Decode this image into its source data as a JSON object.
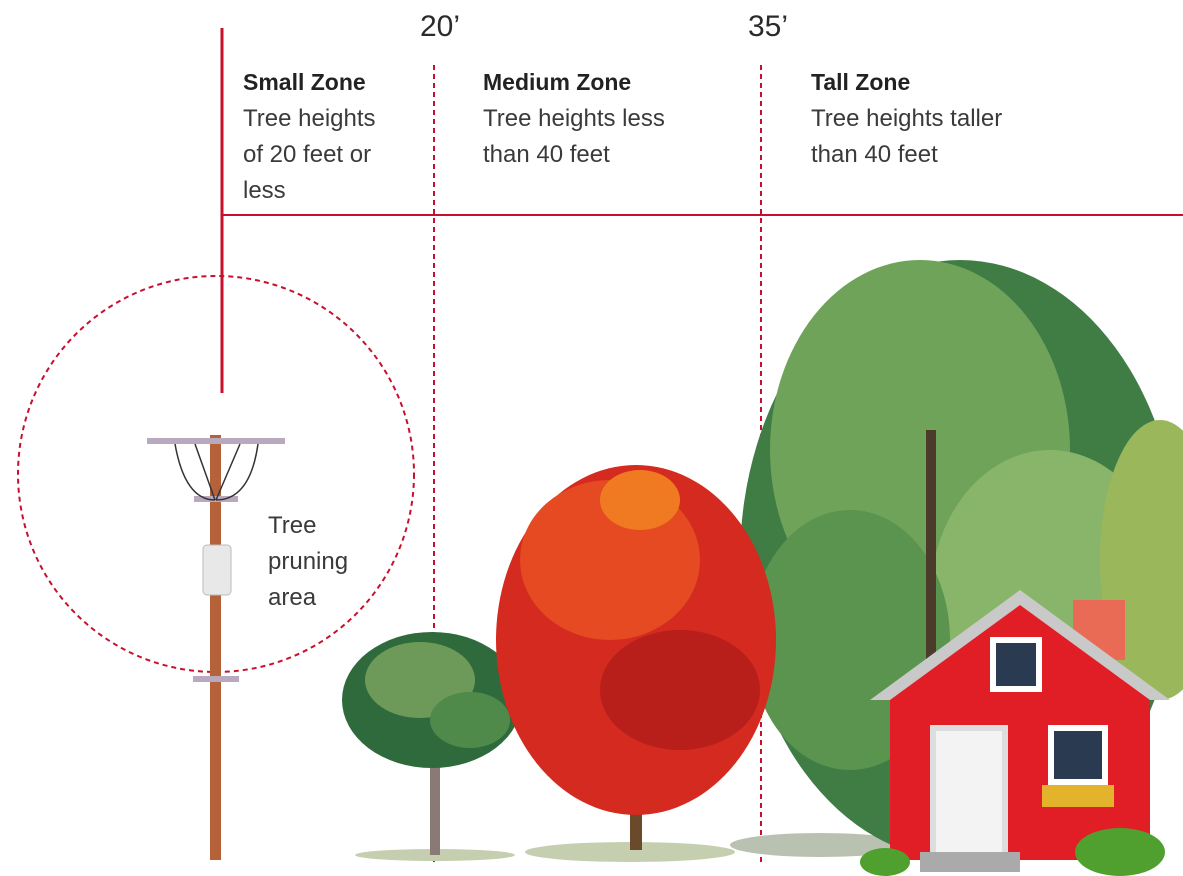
{
  "markers": [
    {
      "label": "20’"
    },
    {
      "label": "35’"
    }
  ],
  "zones": [
    {
      "title": "Small Zone",
      "description": [
        "Tree heights",
        "of 20 feet or",
        "less"
      ]
    },
    {
      "title": "Medium Zone",
      "description": [
        "Tree heights less",
        "than 40 feet"
      ]
    },
    {
      "title": "Tall Zone",
      "description": [
        "Tree heights taller",
        "than 40 feet"
      ]
    }
  ],
  "pruning_area": {
    "label": [
      "Tree",
      "pruning",
      "area"
    ]
  }
}
